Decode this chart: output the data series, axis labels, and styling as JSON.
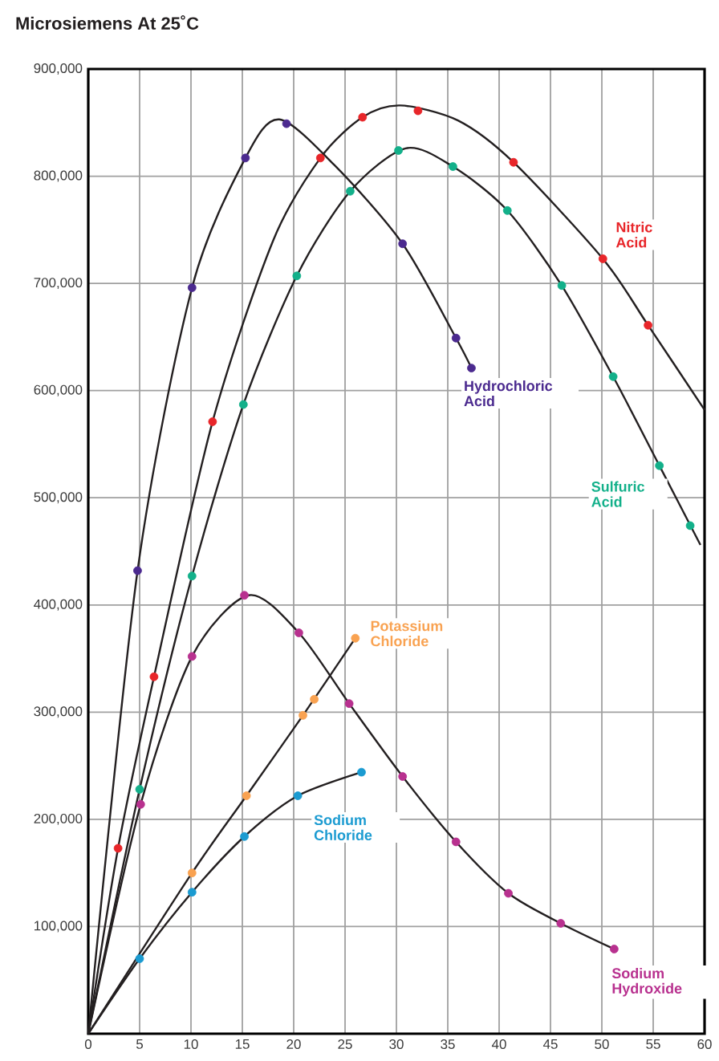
{
  "chart_data": {
    "type": "scatter",
    "title": "Microsiemens At 25˚C",
    "xlim": [
      0,
      60
    ],
    "xticks": [
      0,
      5,
      10,
      15,
      20,
      25,
      30,
      35,
      40,
      45,
      50,
      55,
      60
    ],
    "ylim": [
      0,
      900000
    ],
    "yticks": [
      {
        "value": 100000,
        "label": "100,000"
      },
      {
        "value": 200000,
        "label": "200,000"
      },
      {
        "value": 300000,
        "label": "300,000"
      },
      {
        "value": 400000,
        "label": "400,000"
      },
      {
        "value": 500000,
        "label": "500,000"
      },
      {
        "value": 600000,
        "label": "600,000"
      },
      {
        "value": 700000,
        "label": "700,000"
      },
      {
        "value": 800000,
        "label": "800,000"
      },
      {
        "value": 900000,
        "label": "900,000"
      }
    ],
    "grid": true,
    "marker": "circle",
    "series": [
      {
        "name": "Hydrochloric Acid",
        "color": "#4b2a8f",
        "x": [
          4.8,
          10.1,
          15.3,
          19.3,
          30.6,
          35.8,
          37.3
        ],
        "values": [
          432000,
          696000,
          817000,
          849000,
          737000,
          649000,
          621000
        ]
      },
      {
        "name": "Nitric Acid",
        "color": "#e8262a",
        "x": [
          2.9,
          6.4,
          12.1,
          22.6,
          26.7,
          32.1,
          41.4,
          50.1,
          54.5
        ],
        "values": [
          173000,
          333000,
          571000,
          817000,
          855000,
          861000,
          813000,
          723000,
          661000
        ]
      },
      {
        "name": "Sulfuric Acid",
        "color": "#13b08a",
        "x": [
          5.0,
          10.1,
          15.1,
          20.3,
          25.5,
          30.2,
          35.5,
          40.8,
          46.1,
          51.1,
          55.6,
          58.6
        ],
        "values": [
          228000,
          427000,
          587000,
          707000,
          786000,
          824000,
          809000,
          768000,
          698000,
          613000,
          530000,
          474000
        ]
      },
      {
        "name": "Potassium Chloride",
        "color": "#f9a251",
        "x": [
          10.1,
          15.4,
          20.9,
          22.0,
          26.0
        ],
        "values": [
          150000,
          222000,
          297000,
          312000,
          369000
        ]
      },
      {
        "name": "Sodium Chloride",
        "color": "#1b9bd1",
        "x": [
          5.0,
          10.1,
          15.2,
          20.4,
          26.6
        ],
        "values": [
          70000,
          132000,
          184000,
          222000,
          244000
        ]
      },
      {
        "name": "Sodium Hydroxide",
        "color": "#b8318f",
        "x": [
          5.1,
          10.1,
          15.2,
          20.5,
          25.4,
          30.6,
          35.8,
          40.9,
          46.0,
          51.2
        ],
        "values": [
          214000,
          352000,
          409000,
          374000,
          308000,
          240000,
          179000,
          131000,
          103000,
          79000
        ]
      },
      {
        "type": "line",
        "marker": "none",
        "color": "#231f20",
        "x": [
          0,
          4.8,
          10.1,
          15.3,
          18.6,
          24,
          30.6,
          35.8,
          37.3
        ],
        "values": [
          0,
          432000,
          696000,
          817000,
          853000,
          810000,
          737000,
          649000,
          621000
        ]
      },
      {
        "type": "line",
        "marker": "none",
        "color": "#231f20",
        "x": [
          0,
          2.9,
          6.4,
          12.1,
          18,
          22.6,
          26.7,
          30.4,
          36,
          41.4,
          50.1,
          54.5,
          60
        ],
        "values": [
          0,
          173000,
          333000,
          571000,
          740000,
          817000,
          855000,
          866000,
          852000,
          813000,
          723000,
          661000,
          582000
        ]
      },
      {
        "type": "line",
        "marker": "none",
        "color": "#231f20",
        "x": [
          0,
          5.0,
          10.1,
          15.1,
          20.3,
          25.5,
          30.9,
          35.5,
          40.8,
          46.1,
          51.1,
          55.6,
          59.6
        ],
        "values": [
          0,
          228000,
          427000,
          587000,
          707000,
          786000,
          826000,
          809000,
          768000,
          698000,
          613000,
          530000,
          456000
        ]
      },
      {
        "type": "line",
        "marker": "none",
        "color": "#231f20",
        "x": [
          0,
          10.1,
          15.4,
          20.9,
          26.0
        ],
        "values": [
          0,
          150000,
          222000,
          297000,
          369000
        ]
      },
      {
        "type": "line",
        "marker": "none",
        "color": "#231f20",
        "x": [
          0,
          5.0,
          10.1,
          15.2,
          20.4,
          26.6
        ],
        "values": [
          0,
          70000,
          132000,
          184000,
          222000,
          244000
        ]
      },
      {
        "type": "line",
        "marker": "none",
        "color": "#231f20",
        "x": [
          0,
          5.1,
          10.1,
          15.6,
          20.5,
          25.4,
          30.6,
          35.8,
          40.9,
          46.0,
          51.2
        ],
        "values": [
          0,
          214000,
          352000,
          409000,
          374000,
          308000,
          240000,
          179000,
          131000,
          103000,
          79000
        ]
      }
    ]
  }
}
